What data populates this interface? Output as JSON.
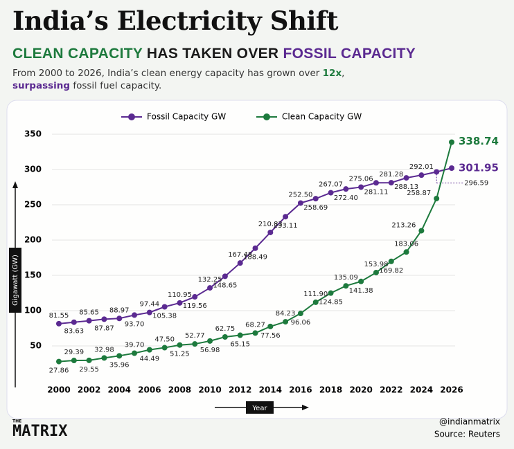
{
  "header": {
    "title": "India’s Electricity Shift",
    "subtitle": [
      "CLEAN CAPACITY",
      "HAS TAKEN OVER",
      "FOSSIL CAPACITY"
    ],
    "description": [
      "From 2000 to 2026, India’s clean energy capacity has grown over ",
      "12x",
      ",",
      "surpassing",
      " fossil fuel capacity."
    ]
  },
  "chart_data": {
    "type": "line",
    "x": [
      2000,
      2001,
      2002,
      2003,
      2004,
      2005,
      2006,
      2007,
      2008,
      2009,
      2010,
      2011,
      2012,
      2013,
      2014,
      2015,
      2016,
      2017,
      2018,
      2019,
      2020,
      2021,
      2022,
      2023,
      2024,
      2025,
      2026
    ],
    "xlim": [
      2000,
      2026
    ],
    "xticks": [
      2000,
      2002,
      2004,
      2006,
      2008,
      2010,
      2012,
      2014,
      2016,
      2018,
      2020,
      2022,
      2024,
      2026
    ],
    "ylim": [
      0,
      350
    ],
    "yticks": [
      50,
      100,
      150,
      200,
      250,
      300,
      350
    ],
    "x_label": "Year",
    "y_label": "Gigawatt (GW)",
    "legend": "top",
    "series": [
      {
        "name": "Fossil Capacity GW",
        "color": "#5b2a91",
        "values": [
          81.55,
          83.63,
          85.65,
          87.87,
          88.97,
          93.7,
          97.44,
          105.38,
          110.95,
          119.56,
          132.25,
          148.65,
          167.48,
          188.49,
          210.83,
          233.11,
          252.5,
          258.69,
          267.07,
          272.4,
          275.06,
          281.11,
          281.28,
          288.13,
          292.01,
          296.59,
          301.95
        ],
        "value_labels": [
          "81.55",
          "83.63",
          "85.65",
          "87.87",
          "88.97",
          "93.70",
          "97.44",
          "105.38",
          "110.95",
          "119.56",
          "132.25",
          "148.65",
          "167.48",
          "188.49",
          "210.83",
          "233.11",
          "252.50",
          "258.69",
          "267.07",
          "272.40",
          "275.06",
          "281.11",
          "281.28",
          "288.13",
          "292.01",
          "296.59",
          "301.95"
        ]
      },
      {
        "name": "Clean Capacity GW",
        "color": "#1d7a3d",
        "values": [
          27.86,
          29.39,
          29.55,
          32.98,
          35.96,
          39.7,
          44.49,
          47.5,
          51.25,
          52.77,
          56.98,
          62.75,
          65.15,
          68.27,
          77.56,
          84.23,
          96.06,
          111.9,
          124.85,
          135.09,
          141.38,
          153.98,
          169.82,
          183.06,
          213.26,
          258.87,
          338.74
        ],
        "value_labels": [
          "27.86",
          "29.39",
          "29.55",
          "32.98",
          "35.96",
          "39.70",
          "44.49",
          "47.50",
          "51.25",
          "52.77",
          "56.98",
          "62.75",
          "65.15",
          "68.27",
          "77.56",
          "84.23",
          "96.06",
          "111.90",
          "124.85",
          "135.09",
          "141.38",
          "153.98",
          "169.82",
          "183.06",
          "213.26",
          "258.87",
          "338.74"
        ]
      }
    ]
  },
  "footer": {
    "logo_small": "THE",
    "logo": "MATRIX",
    "handle": "@indianmatrix",
    "source": "Source: Reuters"
  }
}
